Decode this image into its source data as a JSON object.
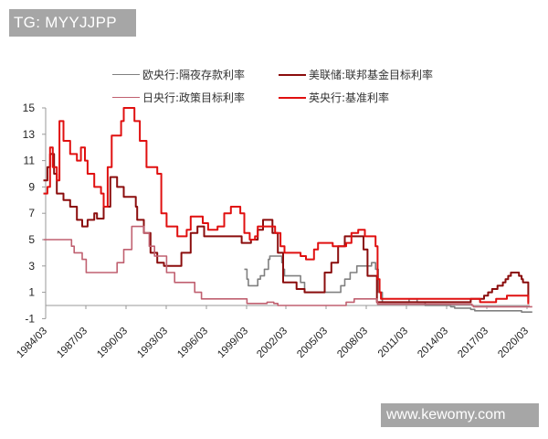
{
  "watermarks": {
    "top": "TG: MYYJJPP",
    "bottom": "www.kewomy.com"
  },
  "legend": [
    {
      "label": "欧央行:隔夜存款利率",
      "color": "#808080"
    },
    {
      "label": "美联储:联邦基金目标利率",
      "color": "#8b0d0d"
    },
    {
      "label": "日央行:政策目标利率",
      "color": "#c06070"
    },
    {
      "label": "英央行:基准利率",
      "color": "#e01010"
    }
  ],
  "chart_data": {
    "type": "line",
    "title": "",
    "xlabel": "",
    "ylabel": "",
    "ylim": [
      -1,
      15
    ],
    "yticks": [
      15,
      13,
      11,
      9,
      7,
      5,
      3,
      1,
      -1
    ],
    "xticks": [
      "1984/03",
      "1987/03",
      "1990/03",
      "1993/03",
      "1996/03",
      "1999/03",
      "2002/03",
      "2005/03",
      "2008/03",
      "2011/03",
      "2014/03",
      "2017/03",
      "2020/03"
    ],
    "grid": false,
    "legend_position": "top",
    "series": [
      {
        "name": "欧央行:隔夜存款利率",
        "color": "#808080",
        "points": [
          [
            1999.0,
            2.75
          ],
          [
            1999.2,
            2.0
          ],
          [
            1999.3,
            1.5
          ],
          [
            1999.9,
            1.5
          ],
          [
            2000.0,
            2.0
          ],
          [
            2000.2,
            2.25
          ],
          [
            2000.5,
            2.75
          ],
          [
            2000.8,
            3.5
          ],
          [
            2000.9,
            3.75
          ],
          [
            2001.7,
            3.75
          ],
          [
            2001.8,
            3.25
          ],
          [
            2001.9,
            2.75
          ],
          [
            2002.0,
            2.25
          ],
          [
            2002.9,
            2.25
          ],
          [
            2003.2,
            1.75
          ],
          [
            2003.5,
            1.0
          ],
          [
            2005.9,
            1.0
          ],
          [
            2006.2,
            1.5
          ],
          [
            2006.5,
            2.0
          ],
          [
            2006.9,
            2.5
          ],
          [
            2007.4,
            3.0
          ],
          [
            2008.5,
            3.25
          ],
          [
            2008.8,
            2.75
          ],
          [
            2009.0,
            1.0
          ],
          [
            2009.3,
            0.25
          ],
          [
            2011.3,
            0.5
          ],
          [
            2011.9,
            0.25
          ],
          [
            2012.5,
            0.0
          ],
          [
            2014.4,
            -0.1
          ],
          [
            2014.7,
            -0.2
          ],
          [
            2015.9,
            -0.3
          ],
          [
            2016.2,
            -0.4
          ],
          [
            2019.7,
            -0.5
          ],
          [
            2020.5,
            -0.5
          ]
        ]
      },
      {
        "name": "美联储:联邦基金目标利率",
        "color": "#8b0d0d",
        "points": [
          [
            1984.0,
            9.5
          ],
          [
            1984.3,
            10.5
          ],
          [
            1984.5,
            11.5
          ],
          [
            1984.8,
            10.0
          ],
          [
            1985.0,
            8.5
          ],
          [
            1985.5,
            8.0
          ],
          [
            1986.0,
            7.5
          ],
          [
            1986.5,
            6.5
          ],
          [
            1986.9,
            6.0
          ],
          [
            1987.3,
            6.5
          ],
          [
            1987.8,
            7.0
          ],
          [
            1988.0,
            6.6
          ],
          [
            1988.5,
            7.5
          ],
          [
            1989.0,
            9.75
          ],
          [
            1989.5,
            9.0
          ],
          [
            1990.0,
            8.25
          ],
          [
            1990.9,
            7.5
          ],
          [
            1991.0,
            6.5
          ],
          [
            1991.5,
            5.5
          ],
          [
            1992.0,
            4.0
          ],
          [
            1992.5,
            3.25
          ],
          [
            1993.0,
            3.0
          ],
          [
            1994.0,
            3.0
          ],
          [
            1994.3,
            4.0
          ],
          [
            1995.0,
            5.5
          ],
          [
            1995.5,
            6.0
          ],
          [
            1996.0,
            5.25
          ],
          [
            1998.8,
            4.75
          ],
          [
            1999.5,
            5.0
          ],
          [
            2000.0,
            5.75
          ],
          [
            2000.4,
            6.5
          ],
          [
            2000.9,
            6.5
          ],
          [
            2001.1,
            5.5
          ],
          [
            2001.5,
            4.0
          ],
          [
            2001.9,
            1.75
          ],
          [
            2002.9,
            1.25
          ],
          [
            2003.5,
            1.0
          ],
          [
            2004.5,
            1.0
          ],
          [
            2005.0,
            2.5
          ],
          [
            2005.5,
            3.25
          ],
          [
            2006.0,
            4.5
          ],
          [
            2006.5,
            5.25
          ],
          [
            2007.6,
            5.25
          ],
          [
            2007.9,
            4.25
          ],
          [
            2008.2,
            2.25
          ],
          [
            2008.9,
            0.25
          ],
          [
            2015.9,
            0.5
          ],
          [
            2016.9,
            0.75
          ],
          [
            2017.2,
            1.0
          ],
          [
            2017.5,
            1.25
          ],
          [
            2017.9,
            1.5
          ],
          [
            2018.3,
            1.75
          ],
          [
            2018.5,
            2.0
          ],
          [
            2018.7,
            2.25
          ],
          [
            2018.9,
            2.5
          ],
          [
            2019.5,
            2.25
          ],
          [
            2019.7,
            2.0
          ],
          [
            2019.8,
            1.75
          ],
          [
            2020.2,
            0.25
          ]
        ]
      },
      {
        "name": "日央行:政策目标利率",
        "color": "#c06070",
        "points": [
          [
            1984.0,
            5.0
          ],
          [
            1986.0,
            5.0
          ],
          [
            1986.1,
            4.5
          ],
          [
            1986.3,
            4.0
          ],
          [
            1986.9,
            3.5
          ],
          [
            1987.2,
            2.5
          ],
          [
            1989.4,
            2.5
          ],
          [
            1989.5,
            3.25
          ],
          [
            1990.0,
            4.25
          ],
          [
            1990.6,
            6.0
          ],
          [
            1991.5,
            5.5
          ],
          [
            1991.9,
            4.5
          ],
          [
            1992.3,
            3.75
          ],
          [
            1993.2,
            2.5
          ],
          [
            1993.8,
            1.75
          ],
          [
            1995.3,
            1.0
          ],
          [
            1995.8,
            0.5
          ],
          [
            1998.8,
            0.5
          ],
          [
            1999.2,
            0.15
          ],
          [
            2000.7,
            0.25
          ],
          [
            2001.2,
            0.15
          ],
          [
            2001.5,
            0.0
          ],
          [
            2006.5,
            0.0
          ],
          [
            2006.6,
            0.25
          ],
          [
            2007.2,
            0.5
          ],
          [
            2008.9,
            0.3
          ],
          [
            2008.95,
            0.1
          ],
          [
            2016.0,
            0.0
          ],
          [
            2016.1,
            -0.1
          ],
          [
            2020.5,
            -0.1
          ]
        ]
      },
      {
        "name": "英央行:基准利率",
        "color": "#e01010",
        "points": [
          [
            1984.0,
            8.5
          ],
          [
            1984.3,
            9.0
          ],
          [
            1984.5,
            12.0
          ],
          [
            1984.7,
            10.5
          ],
          [
            1985.0,
            9.5
          ],
          [
            1985.2,
            14.0
          ],
          [
            1985.5,
            12.5
          ],
          [
            1986.0,
            11.5
          ],
          [
            1986.5,
            11.0
          ],
          [
            1986.8,
            12.0
          ],
          [
            1987.1,
            11.0
          ],
          [
            1987.3,
            10.0
          ],
          [
            1987.8,
            9.0
          ],
          [
            1988.3,
            8.5
          ],
          [
            1988.5,
            7.5
          ],
          [
            1988.8,
            10.5
          ],
          [
            1989.1,
            12.9
          ],
          [
            1989.8,
            14.0
          ],
          [
            1990.0,
            15.0
          ],
          [
            1990.8,
            14.0
          ],
          [
            1991.2,
            12.5
          ],
          [
            1991.7,
            10.5
          ],
          [
            1992.5,
            10.0
          ],
          [
            1992.8,
            7.0
          ],
          [
            1993.2,
            6.0
          ],
          [
            1994.0,
            5.25
          ],
          [
            1994.7,
            5.75
          ],
          [
            1995.0,
            6.75
          ],
          [
            1995.9,
            6.25
          ],
          [
            1996.3,
            5.75
          ],
          [
            1997.0,
            6.0
          ],
          [
            1997.5,
            7.0
          ],
          [
            1998.0,
            7.5
          ],
          [
            1998.7,
            7.0
          ],
          [
            1999.0,
            5.5
          ],
          [
            1999.4,
            5.0
          ],
          [
            1999.8,
            5.25
          ],
          [
            2000.0,
            6.0
          ],
          [
            2001.0,
            6.0
          ],
          [
            2001.3,
            5.5
          ],
          [
            2001.7,
            4.5
          ],
          [
            2002.0,
            4.0
          ],
          [
            2003.2,
            3.75
          ],
          [
            2003.6,
            3.5
          ],
          [
            2004.2,
            4.25
          ],
          [
            2004.5,
            4.75
          ],
          [
            2005.6,
            4.5
          ],
          [
            2006.6,
            4.75
          ],
          [
            2007.0,
            5.5
          ],
          [
            2007.5,
            5.75
          ],
          [
            2008.0,
            5.25
          ],
          [
            2008.8,
            4.5
          ],
          [
            2008.95,
            2.0
          ],
          [
            2009.1,
            1.0
          ],
          [
            2009.2,
            0.5
          ],
          [
            2016.6,
            0.25
          ],
          [
            2017.8,
            0.5
          ],
          [
            2018.6,
            0.75
          ],
          [
            2020.2,
            0.1
          ]
        ]
      }
    ]
  }
}
